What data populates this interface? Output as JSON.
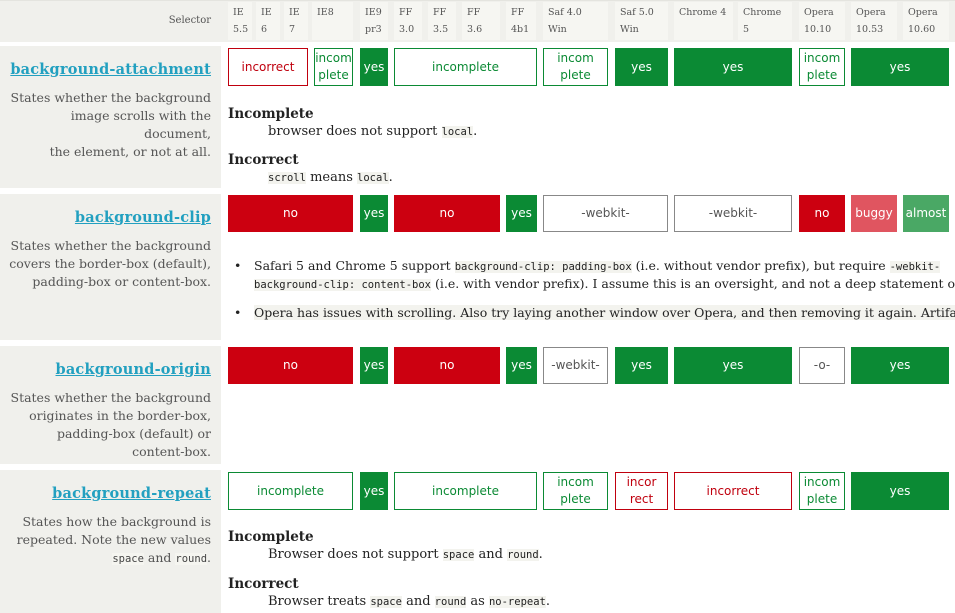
{
  "header": {
    "selector": "Selector",
    "browsers": [
      {
        "l1": "IE",
        "l2": "5.5"
      },
      {
        "l1": "IE 6",
        "l2": ""
      },
      {
        "l1": "IE 7",
        "l2": ""
      },
      {
        "l1": "IE8",
        "l2": ""
      },
      {
        "l1": "IE9",
        "l2": "pr3"
      },
      {
        "l1": "FF",
        "l2": "3.0"
      },
      {
        "l1": "FF",
        "l2": "3.5"
      },
      {
        "l1": "FF 3.6",
        "l2": ""
      },
      {
        "l1": "FF",
        "l2": "4b1"
      },
      {
        "l1": "Saf 4.0 Win",
        "l2": ""
      },
      {
        "l1": "Saf 5.0",
        "l2": "Win"
      },
      {
        "l1": "Chrome 4",
        "l2": ""
      },
      {
        "l1": "Chrome 5",
        "l2": ""
      },
      {
        "l1": "Opera",
        "l2": "10.10"
      },
      {
        "l1": "Opera",
        "l2": "10.53"
      },
      {
        "l1": "Opera",
        "l2": "10.60"
      }
    ]
  },
  "rows": [
    {
      "name": "background-attachment",
      "desc": [
        "States whether the background",
        "image scrolls with the document,",
        "the element, or not at all."
      ],
      "cells": [
        {
          "t": "incorrect",
          "k": "incorrect"
        },
        {
          "t": "incom",
          "t2": "plete",
          "k": "incomplete"
        },
        {
          "t": "yes",
          "k": "yes"
        },
        {
          "t": "incomplete",
          "k": "incomplete"
        },
        {
          "t": "incom",
          "t2": "plete",
          "k": "incomplete"
        },
        {
          "t": "yes",
          "k": "yes"
        },
        {
          "t": "yes",
          "k": "yes"
        },
        {
          "t": "incom",
          "t2": "plete",
          "k": "incomplete"
        },
        {
          "t": "yes",
          "k": "yes"
        }
      ],
      "notes": [
        {
          "head": "Incomplete",
          "pre": "browser does not support ",
          "code": "local",
          "post": "."
        },
        {
          "head": "Incorrect",
          "pre": "",
          "code": "scroll",
          "post": " means ",
          "code2": "local",
          "post2": "."
        }
      ]
    },
    {
      "name": "background-clip",
      "desc": [
        "States whether the background",
        "covers the border-box (default),",
        "padding-box or content-box."
      ],
      "cells": [
        {
          "t": "no",
          "k": "no"
        },
        {
          "t": "yes",
          "k": "yes"
        },
        {
          "t": "no",
          "k": "no"
        },
        {
          "t": "yes",
          "k": "yes"
        },
        {
          "t": "-webkit-",
          "k": "neutral"
        },
        {
          "t": "-webkit-",
          "k": "neutral"
        },
        {
          "t": "no",
          "k": "no"
        },
        {
          "t": "buggy",
          "k": "buggy"
        },
        {
          "t": "almost",
          "k": "almost"
        }
      ],
      "bullets": [
        {
          "a": "Safari 5 and Chrome 5 support ",
          "c1": "background-clip: padding-box",
          "b": " (i.e. without vendor prefix), but require ",
          "c2": "-webkit-",
          "line2c": "background-clip: content-box",
          "line2": " (i.e. with vendor prefix). I assume this is an oversight, and not a deep statement of"
        },
        {
          "a": "Opera has issues with scrolling. Also try laying another window over Opera, and then removing it again. Artifacts r"
        }
      ]
    },
    {
      "name": "background-origin",
      "desc": [
        "States whether the background",
        "originates in the border-box,",
        "padding-box (default) or",
        "content-box."
      ],
      "cells": [
        {
          "t": "no",
          "k": "no"
        },
        {
          "t": "yes",
          "k": "yes"
        },
        {
          "t": "no",
          "k": "no"
        },
        {
          "t": "yes",
          "k": "yes"
        },
        {
          "t": "-webkit-",
          "k": "neutral"
        },
        {
          "t": "yes",
          "k": "yes"
        },
        {
          "t": "yes",
          "k": "yes"
        },
        {
          "t": "-o-",
          "k": "neutral"
        },
        {
          "t": "yes",
          "k": "yes"
        }
      ]
    },
    {
      "name": "background-repeat",
      "desc": [
        "States how the background is",
        "repeated. Note the new values"
      ],
      "desc_code1": "space",
      "desc_and": " and ",
      "desc_code2": "round",
      "desc_end": ".",
      "cells": [
        {
          "t": "incomplete",
          "k": "incomplete"
        },
        {
          "t": "yes",
          "k": "yes"
        },
        {
          "t": "incomplete",
          "k": "incomplete"
        },
        {
          "t": "incom",
          "t2": "plete",
          "k": "incomplete"
        },
        {
          "t": "incor",
          "t2": "rect",
          "k": "incorrect"
        },
        {
          "t": "incorrect",
          "k": "incorrect"
        },
        {
          "t": "incom",
          "t2": "plete",
          "k": "incomplete"
        },
        {
          "t": "yes",
          "k": "yes"
        }
      ],
      "notes": [
        {
          "head": "Incomplete",
          "pre": "Browser does not support ",
          "code": "space",
          "post": " and ",
          "code2": "round",
          "post2": "."
        },
        {
          "head": "Incorrect",
          "pre": "Browser treats ",
          "code": "space",
          "post": " and ",
          "code2": "round",
          "post2": " as ",
          "code3": "no-repeat",
          "post3": "."
        }
      ]
    }
  ]
}
